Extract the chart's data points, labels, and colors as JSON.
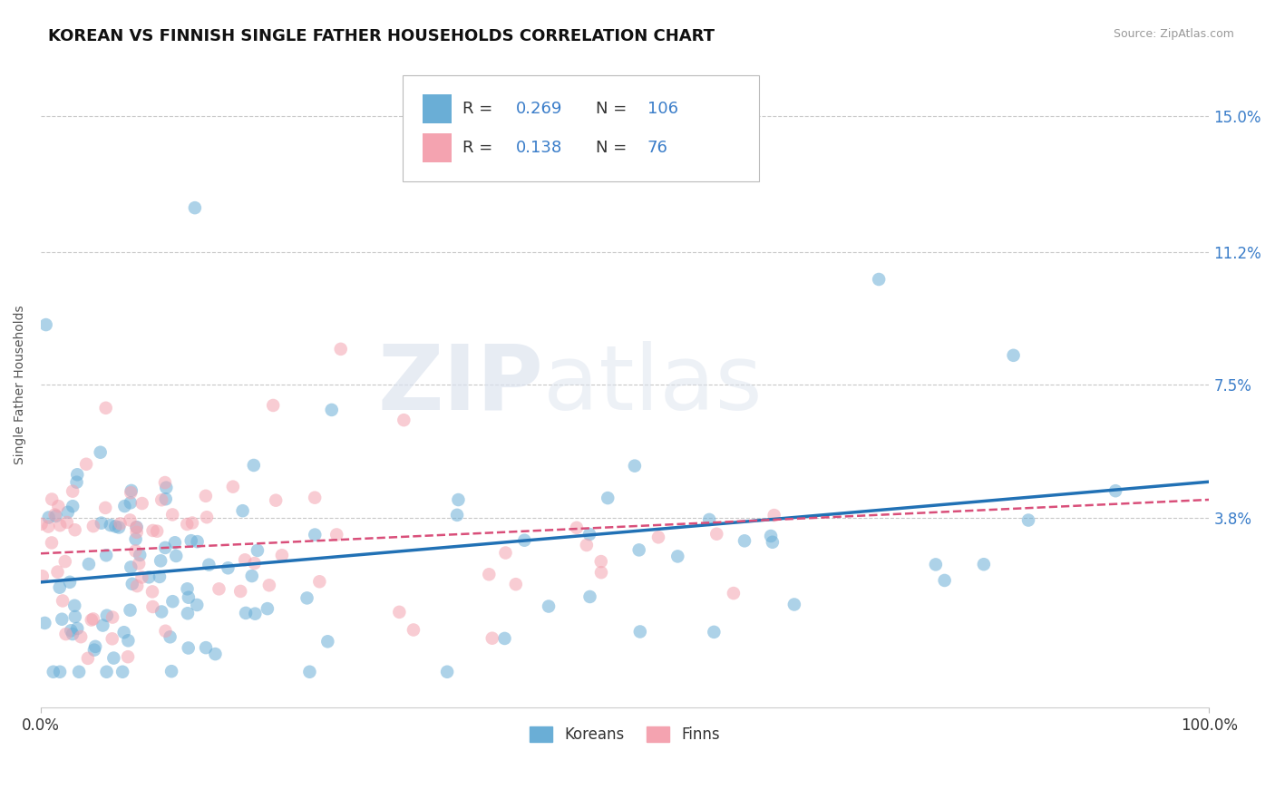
{
  "title": "KOREAN VS FINNISH SINGLE FATHER HOUSEHOLDS CORRELATION CHART",
  "source": "Source: ZipAtlas.com",
  "ylabel": "Single Father Households",
  "korean_R": 0.269,
  "korean_N": 106,
  "finn_R": 0.138,
  "finn_N": 76,
  "korean_color": "#6aaed6",
  "finn_color": "#f4a3b0",
  "korean_line_color": "#2171b5",
  "finn_line_color": "#d94f7a",
  "ytick_labels": [
    "3.8%",
    "7.5%",
    "11.2%",
    "15.0%"
  ],
  "ytick_values": [
    0.038,
    0.075,
    0.112,
    0.15
  ],
  "xlim": [
    0.0,
    1.0
  ],
  "ylim": [
    -0.015,
    0.165
  ],
  "watermark_zip": "ZIP",
  "watermark_atlas": "atlas",
  "title_fontsize": 13,
  "axis_label_fontsize": 10,
  "tick_fontsize": 12,
  "legend_fontsize": 13,
  "blue_text_color": "#3a7dc9",
  "dark_text_color": "#333333",
  "grid_color": "#c8c8c8",
  "source_color": "#999999"
}
